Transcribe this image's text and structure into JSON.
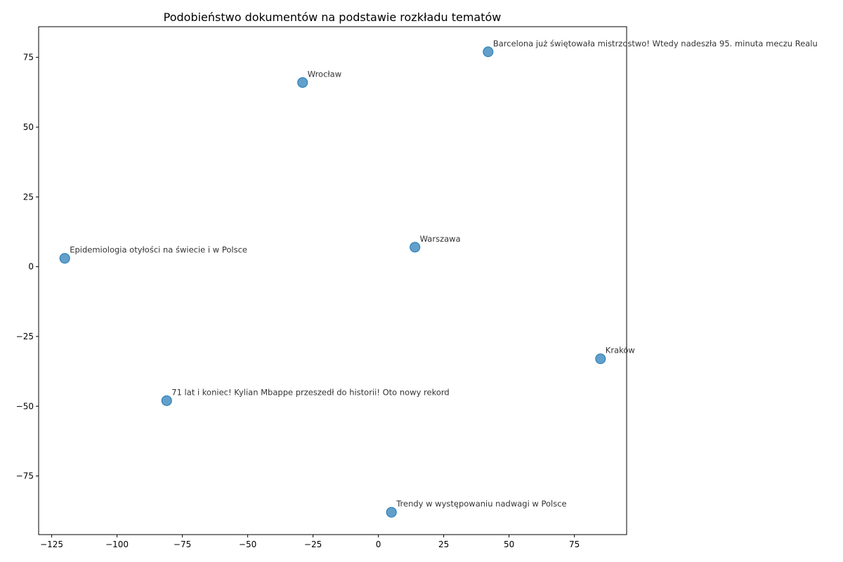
{
  "chart_data": {
    "type": "scatter",
    "title": "Podobieństwo dokumentów na podstawie rozkładu tematów",
    "xlabel": "",
    "ylabel": "",
    "xlim": [
      -130,
      95
    ],
    "ylim": [
      -96,
      86
    ],
    "xticks": [
      -125,
      -100,
      -75,
      -50,
      -25,
      0,
      25,
      50,
      75
    ],
    "yticks": [
      -75,
      -50,
      -25,
      0,
      25,
      50,
      75
    ],
    "xtick_labels": [
      "−125",
      "−100",
      "−75",
      "−50",
      "−25",
      "0",
      "25",
      "50",
      "75"
    ],
    "ytick_labels": [
      "−75",
      "−50",
      "−25",
      "0",
      "25",
      "50",
      "75"
    ],
    "grid": false,
    "marker_color": "#1f77b4",
    "points": [
      {
        "x": 42,
        "y": 77,
        "label": "Barcelona już świętowała mistrzostwo! Wtedy nadeszła 95. minuta meczu Realu"
      },
      {
        "x": -29,
        "y": 66,
        "label": "Wrocław"
      },
      {
        "x": 14,
        "y": 7,
        "label": "Warszawa"
      },
      {
        "x": -120,
        "y": 3,
        "label": "Epidemiologia otyłości na świecie i w Polsce"
      },
      {
        "x": 85,
        "y": -33,
        "label": "Kraków"
      },
      {
        "x": -81,
        "y": -48,
        "label": "71 lat i koniec! Kylian Mbappe przeszedł do historii! Oto nowy rekord"
      },
      {
        "x": 5,
        "y": -88,
        "label": "Trendy w występowaniu nadwagi w Polsce"
      }
    ]
  }
}
